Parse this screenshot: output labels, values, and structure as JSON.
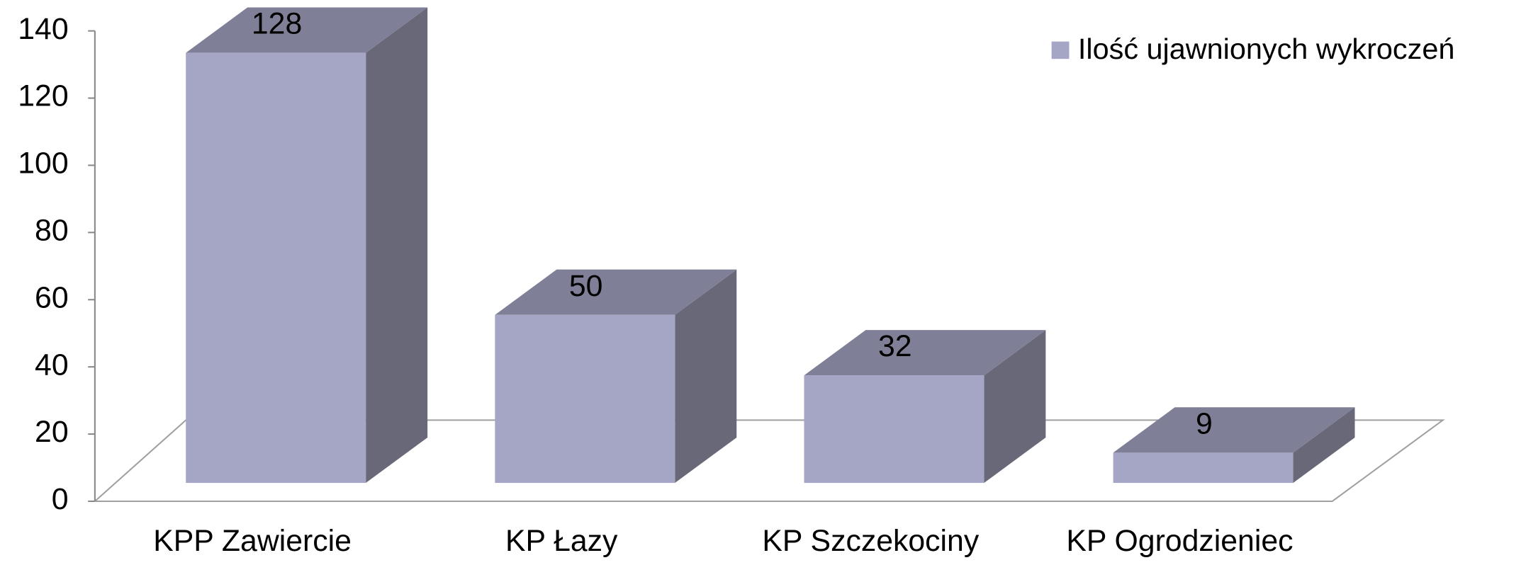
{
  "chart_data": {
    "type": "bar3d",
    "categories": [
      "KPP Zawiercie",
      "KP Łazy",
      "KP Szczekociny",
      "KP Ogrodzieniec"
    ],
    "series": [
      {
        "name": "Ilość ujawnionych wykroczeń",
        "color": "#a5a5c5",
        "values": [
          128,
          50,
          32,
          9
        ]
      }
    ],
    "ylim": [
      0,
      140
    ],
    "yticks": [
      0,
      20,
      40,
      60,
      80,
      100,
      120,
      140
    ],
    "legend": "top-right"
  }
}
